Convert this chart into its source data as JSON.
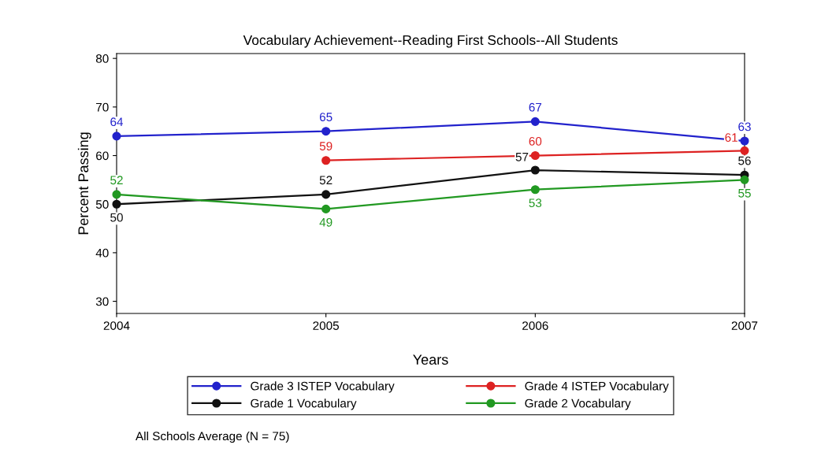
{
  "chart_data": {
    "type": "line",
    "title": "Vocabulary Achievement--Reading First Schools--All Students",
    "xlabel": "Years",
    "ylabel": "Percent Passing",
    "x": [
      2004,
      2005,
      2006,
      2007
    ],
    "series": [
      {
        "name": "Grade 3 ISTEP Vocabulary",
        "color": "#2222cc",
        "values": [
          64,
          65,
          67,
          63
        ]
      },
      {
        "name": "Grade 4 ISTEP Vocabulary",
        "color": "#dd2222",
        "values": [
          null,
          59,
          60,
          61
        ]
      },
      {
        "name": "Grade 1 Vocabulary",
        "color": "#111111",
        "values": [
          50,
          52,
          57,
          56
        ]
      },
      {
        "name": "Grade 2 Vocabulary",
        "color": "#229922",
        "values": [
          52,
          49,
          53,
          55
        ]
      }
    ],
    "xlim": [
      2004,
      2007
    ],
    "xticks": [
      2004,
      2005,
      2006,
      2007
    ],
    "ylim": [
      27.5,
      81
    ],
    "yticks": [
      30,
      40,
      50,
      60,
      70,
      80
    ],
    "data_labels": true,
    "marker": "circle",
    "line_style": "solid",
    "grid": false,
    "legend": "bottom",
    "annotations": [
      "All Schools Average (N = 75)"
    ]
  }
}
